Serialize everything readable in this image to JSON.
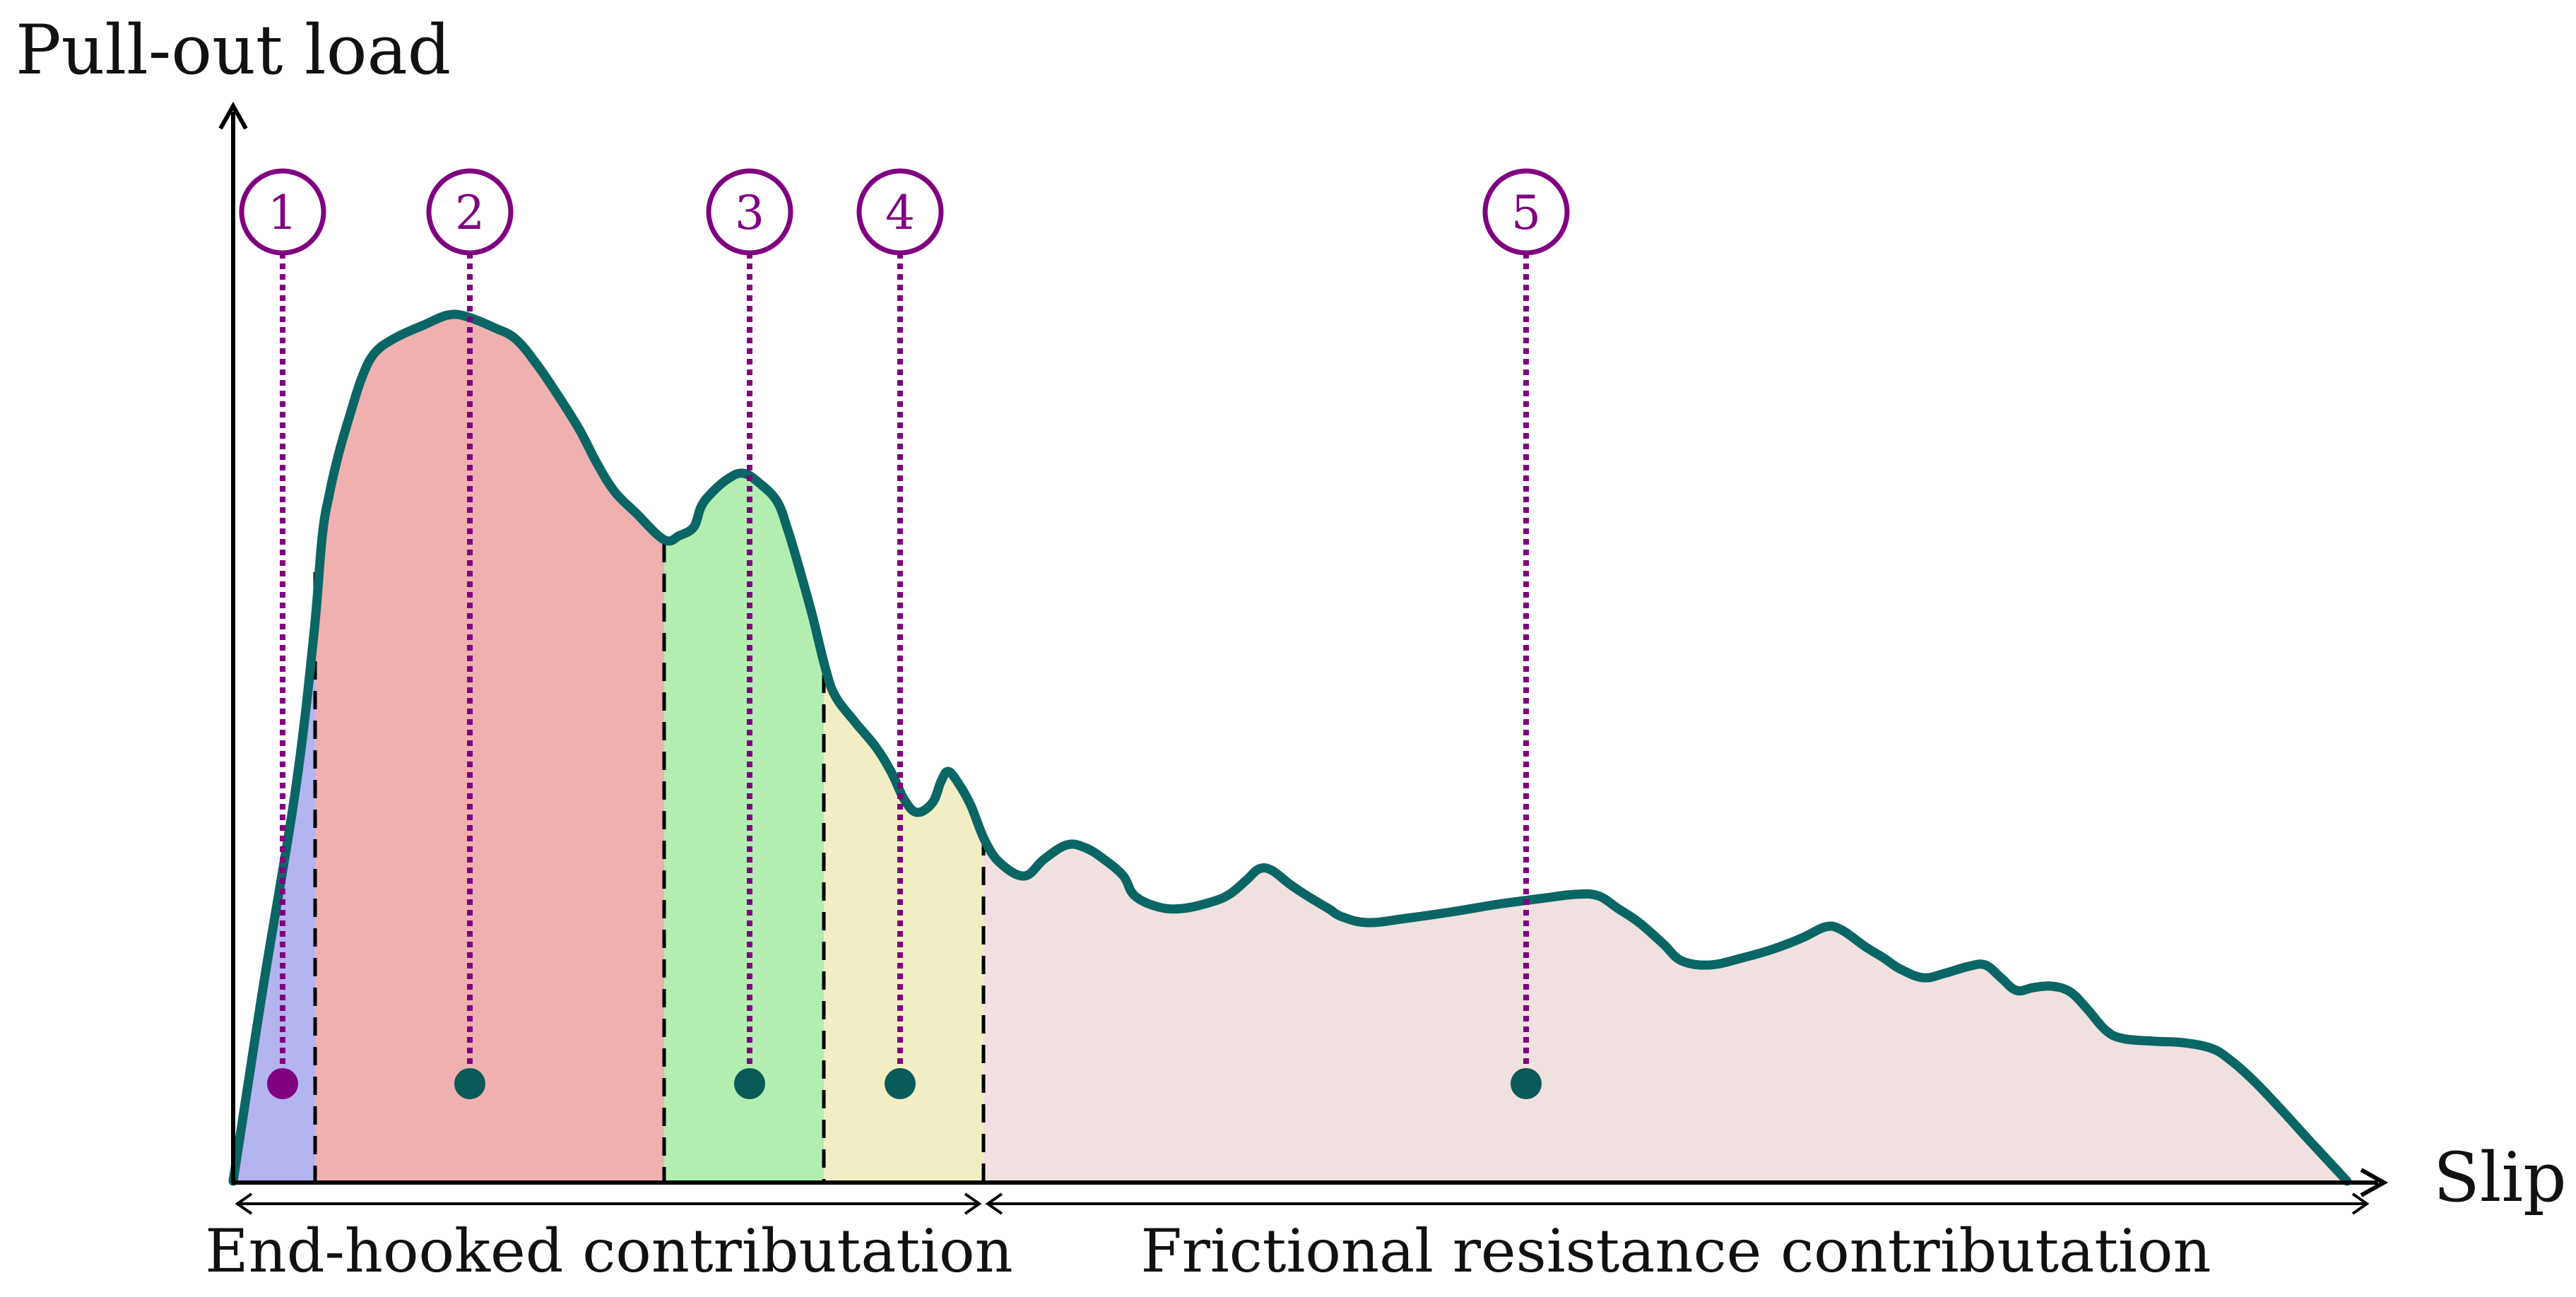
{
  "axes": {
    "y_label": "Pull-out load",
    "x_label": "Slip"
  },
  "spans": {
    "end_hooked": "End-hooked contributation",
    "frictional": "Frictional resistance contributation"
  },
  "stages": [
    {
      "number": "1",
      "color": "#b4b4f0"
    },
    {
      "number": "2",
      "color": "#f0b0b0"
    },
    {
      "number": "3",
      "color": "#b2eeb0"
    },
    {
      "number": "4",
      "color": "#f2eec4"
    },
    {
      "number": "5",
      "color": "#f0e0e0"
    }
  ],
  "colors": {
    "curve": "#0a6664",
    "marker_purple": "#800080",
    "marker_teal": "#0a5a58",
    "axis": "#000000",
    "divider": "#000000"
  }
}
